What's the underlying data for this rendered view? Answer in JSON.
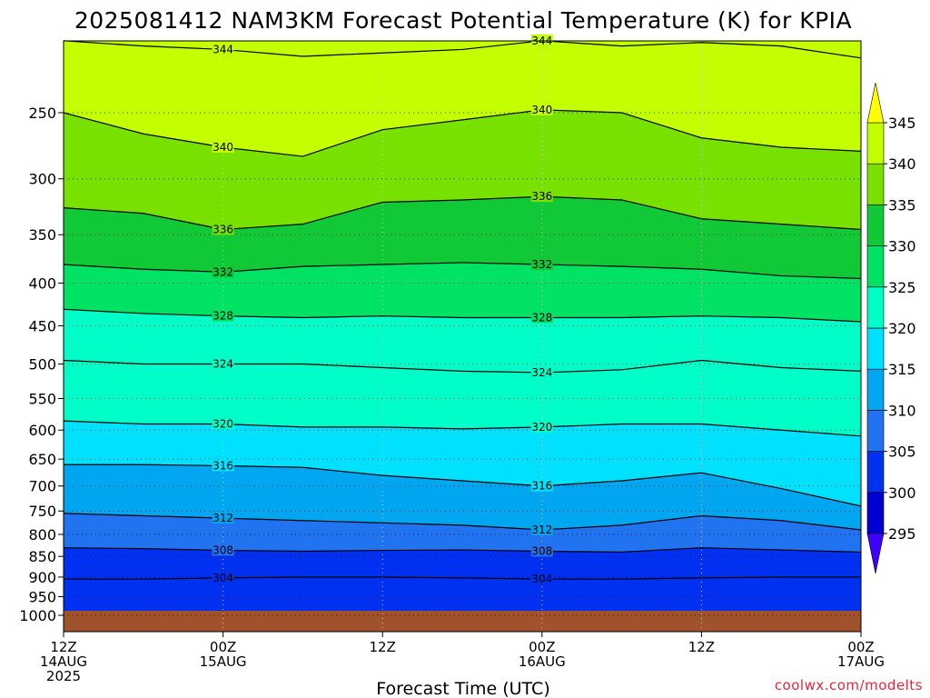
{
  "title": "2025081412 NAM3KM Forecast Potential Temperature (K) for KPIA",
  "credit": "coolwx.com/modelts",
  "chart_data": {
    "type": "heatmap",
    "title": "2025081412 NAM3KM Forecast Potential Temperature (K) for KPIA",
    "xlabel": "Forecast Time (UTC)",
    "ylabel": "",
    "x_range_hours": [
      0,
      60
    ],
    "y_range_hpa": [
      1000,
      200
    ],
    "y_scale": "log-pressure (inverted)",
    "grid": true,
    "x_ticks": [
      {
        "hour": 0,
        "lines": [
          "12Z",
          "14AUG",
          "2025"
        ]
      },
      {
        "hour": 12,
        "lines": [
          "00Z",
          "15AUG"
        ]
      },
      {
        "hour": 24,
        "lines": [
          "12Z"
        ]
      },
      {
        "hour": 36,
        "lines": [
          "00Z",
          "16AUG"
        ]
      },
      {
        "hour": 48,
        "lines": [
          "12Z"
        ]
      },
      {
        "hour": 60,
        "lines": [
          "00Z",
          "17AUG"
        ]
      }
    ],
    "y_ticks": [
      250,
      300,
      350,
      400,
      450,
      500,
      550,
      600,
      650,
      700,
      750,
      800,
      850,
      900,
      950,
      1000
    ],
    "colorbar": {
      "levels": [
        295,
        300,
        305,
        310,
        315,
        320,
        325,
        330,
        335,
        340,
        345
      ],
      "colors": [
        "#3e00ff",
        "#0000d2",
        "#0030f0",
        "#2273f0",
        "#00a6f0",
        "#00e1ff",
        "#00ffc8",
        "#00e264",
        "#11c837",
        "#78e100",
        "#c3ff00",
        "#ffff00"
      ],
      "extend": "both"
    },
    "ground_color": "#a0522d",
    "contour_interval": 4,
    "contour_label_values": [
      304,
      308,
      312,
      316,
      320,
      324,
      328,
      332,
      336,
      340,
      344
    ],
    "contours": [
      {
        "value": 304,
        "pressure": [
          905,
          905,
          902,
          900,
          900,
          902,
          905,
          905,
          902,
          900,
          900
        ]
      },
      {
        "value": 308,
        "pressure": [
          830,
          832,
          836,
          838,
          836,
          835,
          838,
          840,
          830,
          835,
          840
        ]
      },
      {
        "value": 312,
        "pressure": [
          755,
          760,
          765,
          770,
          775,
          780,
          790,
          780,
          760,
          770,
          790
        ]
      },
      {
        "value": 316,
        "pressure": [
          660,
          660,
          662,
          665,
          680,
          690,
          700,
          690,
          675,
          705,
          740
        ]
      },
      {
        "value": 320,
        "pressure": [
          585,
          590,
          590,
          595,
          595,
          598,
          595,
          590,
          590,
          600,
          610
        ]
      },
      {
        "value": 324,
        "pressure": [
          495,
          500,
          500,
          500,
          505,
          510,
          512,
          508,
          495,
          505,
          510
        ]
      },
      {
        "value": 328,
        "pressure": [
          430,
          435,
          438,
          440,
          438,
          440,
          440,
          440,
          438,
          440,
          445
        ]
      },
      {
        "value": 332,
        "pressure": [
          380,
          385,
          388,
          382,
          380,
          378,
          380,
          382,
          385,
          392,
          395
        ]
      },
      {
        "value": 336,
        "pressure": [
          325,
          330,
          345,
          340,
          320,
          318,
          315,
          318,
          335,
          340,
          345
        ]
      },
      {
        "value": 340,
        "pressure": [
          250,
          265,
          275,
          282,
          262,
          255,
          248,
          250,
          268,
          275,
          278
        ]
      },
      {
        "value": 344,
        "pressure": [
          205,
          208,
          210,
          214,
          212,
          210,
          205,
          208,
          206,
          208,
          215
        ]
      }
    ],
    "contour_x_hours": [
      0,
      6,
      12,
      18,
      24,
      30,
      36,
      42,
      48,
      54,
      60
    ]
  }
}
